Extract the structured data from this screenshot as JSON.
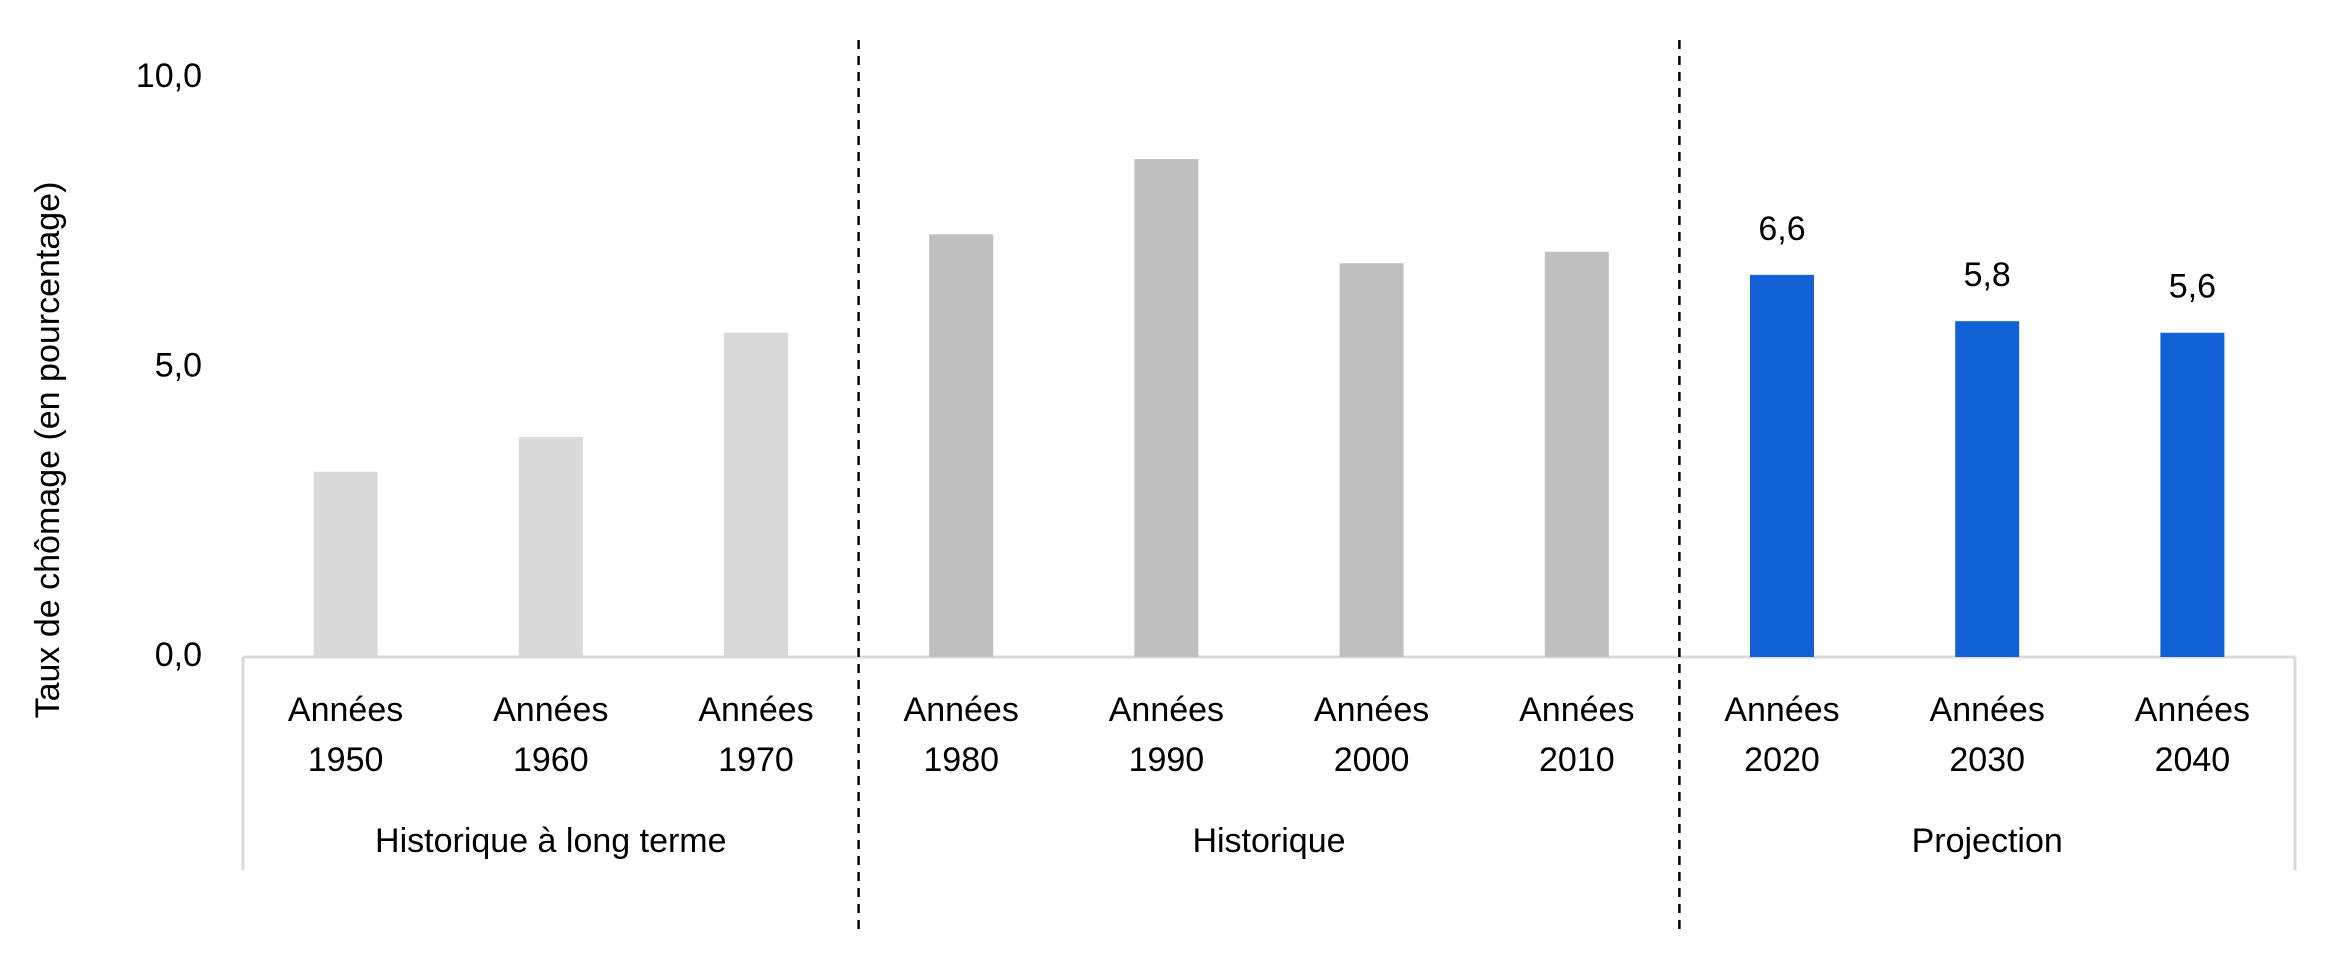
{
  "chart_data": {
    "type": "bar",
    "y_label": "Taux de chômage (en pourcentage)",
    "ylim": [
      0,
      10
    ],
    "yticks": [
      {
        "value": 0,
        "label": "0,0"
      },
      {
        "value": 5,
        "label": "5,0"
      },
      {
        "value": 10,
        "label": "10,0"
      }
    ],
    "groups": [
      {
        "name": "Historique à long terme",
        "color": "#d9d9d9",
        "categories": [
          "Années 1950",
          "Années 1960",
          "Années 1970"
        ],
        "values": [
          3.2,
          3.8,
          5.6
        ]
      },
      {
        "name": "Historique",
        "color": "#bfbfbf",
        "categories": [
          "Années 1980",
          "Années 1990",
          "Années 2000",
          "Années 2010"
        ],
        "values": [
          7.3,
          8.6,
          6.8,
          7.0
        ]
      },
      {
        "name": "Projection",
        "color": "#1261d6",
        "categories": [
          "Années 2020",
          "Années 2030",
          "Années 2040"
        ],
        "values": [
          6.6,
          5.8,
          5.6
        ],
        "value_labels": [
          "6,6",
          "5,8",
          "5,6"
        ]
      }
    ]
  }
}
